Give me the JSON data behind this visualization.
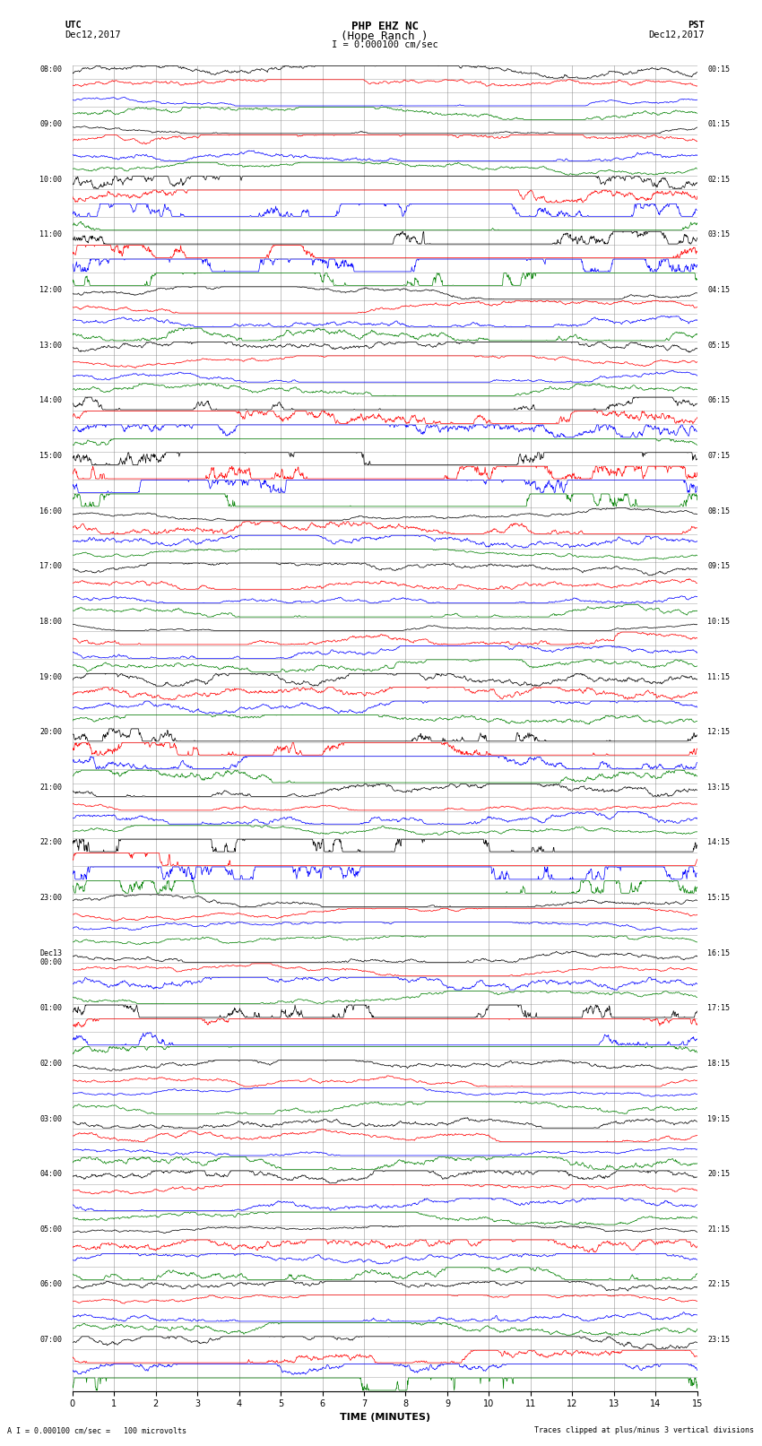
{
  "title_line1": "PHP EHZ NC",
  "title_line2": "(Hope Ranch )",
  "title_scale": "I = 0.000100 cm/sec",
  "top_left_line1": "UTC",
  "top_left_line2": "Dec12,2017",
  "top_right_line1": "PST",
  "top_right_line2": "Dec12,2017",
  "xlabel": "TIME (MINUTES)",
  "note_left": "A I = 0.000100 cm/sec =   100 microvolts",
  "note_right": "Traces clipped at plus/minus 3 vertical divisions",
  "xlim": [
    0,
    15
  ],
  "xticks": [
    0,
    1,
    2,
    3,
    4,
    5,
    6,
    7,
    8,
    9,
    10,
    11,
    12,
    13,
    14,
    15
  ],
  "row_colors": [
    "black",
    "red",
    "blue",
    "green"
  ],
  "num_rows": 96,
  "utc_labels": [
    "08:00",
    "09:00",
    "10:00",
    "11:00",
    "12:00",
    "13:00",
    "14:00",
    "15:00",
    "16:00",
    "17:00",
    "18:00",
    "19:00",
    "20:00",
    "21:00",
    "22:00",
    "23:00",
    "Dec13\n00:00",
    "01:00",
    "02:00",
    "03:00",
    "04:00",
    "05:00",
    "06:00",
    "07:00"
  ],
  "pst_labels": [
    "00:15",
    "01:15",
    "02:15",
    "03:15",
    "04:15",
    "05:15",
    "06:15",
    "07:15",
    "08:15",
    "09:15",
    "10:15",
    "11:15",
    "12:15",
    "13:15",
    "14:15",
    "15:15",
    "16:15",
    "17:15",
    "18:15",
    "19:15",
    "20:15",
    "21:15",
    "22:15",
    "23:15"
  ],
  "bg_color": "white",
  "grid_color": "#888888",
  "trace_lw": 0.5
}
